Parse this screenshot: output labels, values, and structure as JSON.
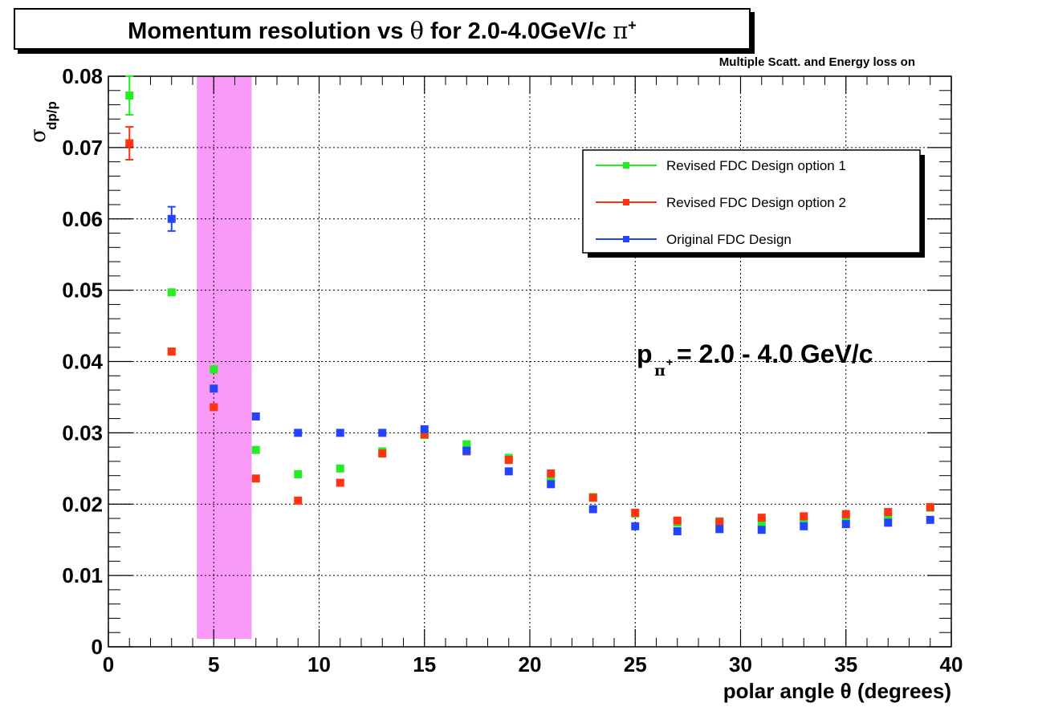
{
  "chart_data": {
    "type": "scatter",
    "title": {
      "main": "Momentum resolution vs ",
      "symbol": "θ",
      "rest": " for 2.0-4.0GeV/c ",
      "particle": "π",
      "charge": "+"
    },
    "subtitle": "Multiple Scatt. and Energy loss on",
    "xlabel": "polar angle θ (degrees)",
    "ylabel": {
      "base": "σ",
      "sub": "dp/p"
    },
    "xlim": [
      0,
      40
    ],
    "ylim": [
      0,
      0.08
    ],
    "x_ticks": [
      "0",
      "5",
      "10",
      "15",
      "20",
      "25",
      "30",
      "35",
      "40"
    ],
    "y_ticks": [
      "0",
      "0.01",
      "0.02",
      "0.03",
      "0.04",
      "0.05",
      "0.06",
      "0.07",
      "0.08"
    ],
    "grid": true,
    "legend_position": "top-right",
    "annotation": {
      "p": "p",
      "sub": "π",
      "sup": "+",
      "rest": " = 2.0 - 4.0 GeV/c"
    },
    "shaded_band": {
      "x_range": [
        4.2,
        6.8
      ],
      "color": "#f99af8"
    },
    "series": [
      {
        "name": "Revised FDC Design option 1",
        "color": "#22ee22",
        "x": [
          1,
          3,
          5,
          7,
          9,
          11,
          13,
          15,
          17,
          19,
          21,
          23,
          25,
          27,
          29,
          31,
          33,
          35,
          37,
          39
        ],
        "y": [
          0.0773,
          0.0497,
          0.0389,
          0.0276,
          0.0242,
          0.025,
          0.0274,
          0.0297,
          0.0284,
          0.0265,
          0.0237,
          0.021,
          0.0187,
          0.0174,
          0.0176,
          0.0175,
          0.0178,
          0.0181,
          0.0183,
          0.0195
        ],
        "yerr": [
          0.0027,
          0.0004,
          0,
          0,
          0,
          0,
          0,
          0,
          0,
          0,
          0,
          0,
          0,
          0,
          0,
          0,
          0,
          0,
          0,
          0
        ]
      },
      {
        "name": "Revised FDC Design option 2",
        "color": "#ff3311",
        "x": [
          1,
          3,
          5,
          7,
          9,
          11,
          13,
          15,
          17,
          19,
          21,
          23,
          25,
          27,
          29,
          31,
          33,
          35,
          37,
          39
        ],
        "y": [
          0.0706,
          0.0414,
          0.0336,
          0.0236,
          0.0205,
          0.023,
          0.0271,
          0.0298,
          0.0274,
          0.0262,
          0.0243,
          0.0209,
          0.0188,
          0.0177,
          0.0175,
          0.0181,
          0.0183,
          0.0186,
          0.0189,
          0.0196
        ],
        "yerr": [
          0.0023,
          0.0003,
          0,
          0,
          0,
          0,
          0,
          0,
          0,
          0,
          0,
          0,
          0,
          0,
          0,
          0,
          0,
          0,
          0,
          0
        ]
      },
      {
        "name": "Original FDC Design",
        "color": "#2244ff",
        "x": [
          3,
          5,
          7,
          9,
          11,
          13,
          15,
          17,
          19,
          21,
          23,
          25,
          27,
          29,
          31,
          33,
          35,
          37,
          39
        ],
        "y": [
          0.06,
          0.0362,
          0.0323,
          0.03,
          0.03,
          0.03,
          0.0305,
          0.0275,
          0.0246,
          0.0228,
          0.0193,
          0.0169,
          0.0162,
          0.0165,
          0.0164,
          0.0169,
          0.0172,
          0.0174,
          0.0178
        ],
        "yerr": [
          0.0017,
          0,
          0,
          0,
          0,
          0,
          0,
          0,
          0,
          0,
          0,
          0,
          0,
          0,
          0,
          0,
          0,
          0,
          0
        ]
      }
    ]
  }
}
